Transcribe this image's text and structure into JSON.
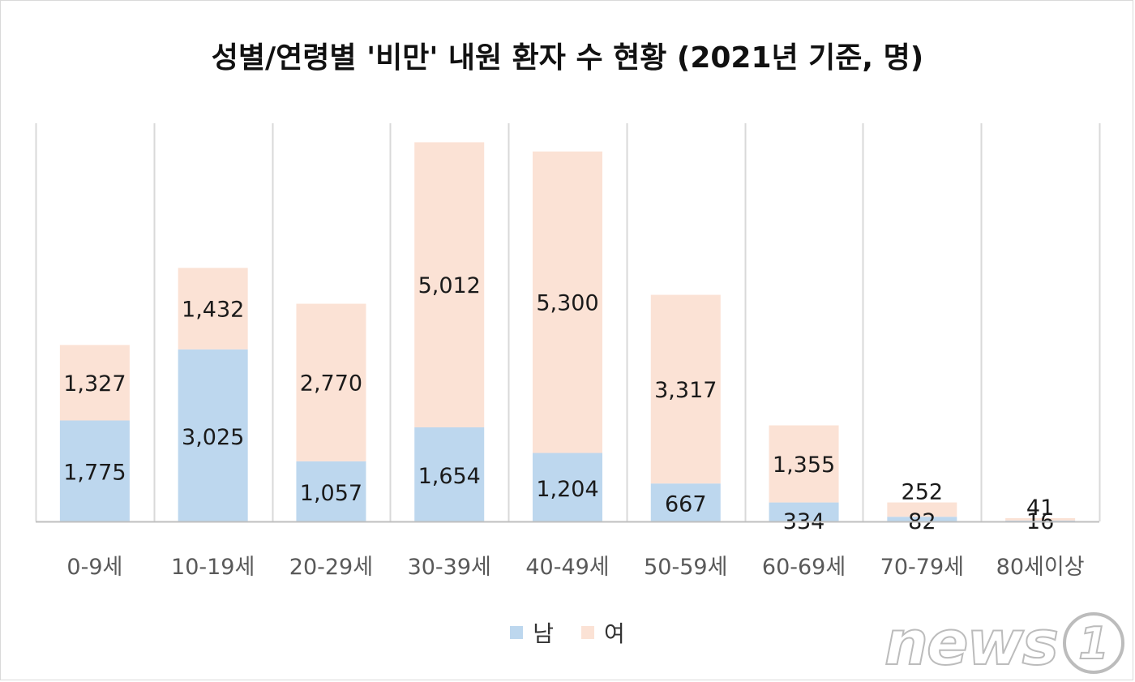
{
  "title": "성별/연령별 '비만' 내원 환자 수 현황 (2021년 기준, 명)",
  "colors": {
    "male": "#bdd7ee",
    "female": "#fbe2d5",
    "grid": "#d9d9d9",
    "axis": "#bfbfbf",
    "text": "#1a1a1a"
  },
  "legend": {
    "male": "남",
    "female": "여"
  },
  "watermark": {
    "text": "news",
    "mark": "1"
  },
  "chart_data": {
    "type": "bar",
    "stacked": true,
    "title": "성별/연령별 '비만' 내원 환자 수 현황 (2021년 기준, 명)",
    "categories": [
      "0-9세",
      "10-19세",
      "20-29세",
      "30-39세",
      "40-49세",
      "50-59세",
      "60-69세",
      "70-79세",
      "80세이상"
    ],
    "series": [
      {
        "name": "남",
        "values": [
          1775,
          3025,
          1057,
          1654,
          1204,
          667,
          334,
          82,
          16
        ],
        "labels": [
          "1,775",
          "3,025",
          "1,057",
          "1,654",
          "1,204",
          "667",
          "334",
          "82",
          "16"
        ]
      },
      {
        "name": "여",
        "values": [
          1327,
          1432,
          2770,
          5012,
          5300,
          3317,
          1355,
          252,
          41
        ],
        "labels": [
          "1,327",
          "1,432",
          "2,770",
          "5,012",
          "5,300",
          "3,317",
          "1,355",
          "252",
          "41"
        ]
      }
    ],
    "ylim": [
      0,
      7000
    ],
    "y_axis_visible": false,
    "grid": "vertical",
    "legend_position": "bottom"
  }
}
